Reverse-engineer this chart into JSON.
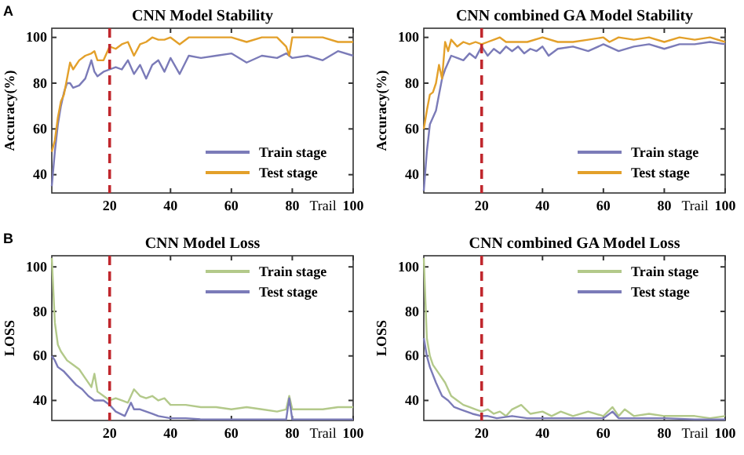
{
  "chart_data": [
    {
      "type": "line",
      "title": "CNN Model Stability",
      "xlabel": "Trail",
      "ylabel": "Accuracy(%)",
      "annotations": [
        "A"
      ],
      "xlim": [
        1,
        100
      ],
      "xticks": [
        20,
        40,
        60,
        80,
        100
      ],
      "ylim": [
        32,
        104
      ],
      "yticks": [
        40,
        60,
        80,
        100
      ],
      "legend": "bottom right",
      "ref_lines": [
        {
          "axis": "x",
          "value": 20,
          "color": "#c0272d",
          "line_style": "dashed"
        }
      ],
      "series": [
        {
          "name": "Train stage",
          "color": "#7b7bb8",
          "x": [
            1,
            2,
            3,
            4,
            5,
            6,
            7,
            8,
            10,
            12,
            14,
            15,
            16,
            18,
            20,
            22,
            24,
            26,
            28,
            30,
            32,
            34,
            36,
            38,
            40,
            43,
            46,
            50,
            55,
            60,
            65,
            70,
            75,
            78,
            80,
            85,
            90,
            95,
            100
          ],
          "values": [
            35,
            50,
            62,
            70,
            76,
            80,
            80,
            78,
            79,
            82,
            90,
            85,
            83,
            85,
            86,
            87,
            86,
            90,
            84,
            88,
            82,
            88,
            90,
            85,
            91,
            84,
            92,
            91,
            92,
            93,
            89,
            92,
            91,
            93,
            91,
            92,
            90,
            94,
            92
          ]
        },
        {
          "name": "Test stage",
          "color": "#e3a02a",
          "x": [
            1,
            2,
            3,
            4,
            5,
            6,
            7,
            8,
            10,
            12,
            14,
            15,
            16,
            18,
            20,
            22,
            24,
            26,
            28,
            30,
            32,
            34,
            36,
            38,
            40,
            43,
            46,
            50,
            55,
            60,
            65,
            70,
            75,
            78,
            79,
            80,
            85,
            90,
            95,
            100
          ],
          "values": [
            50,
            55,
            65,
            72,
            75,
            82,
            89,
            86,
            90,
            92,
            93,
            94,
            90,
            90,
            96,
            95,
            97,
            98,
            92,
            97,
            98,
            100,
            99,
            99,
            100,
            97,
            100,
            100,
            100,
            100,
            98,
            100,
            100,
            96,
            92,
            100,
            100,
            100,
            98,
            98
          ]
        }
      ]
    },
    {
      "type": "line",
      "title": "CNN combined GA Model Stability",
      "xlabel": "Trail",
      "ylabel": "Accuracy(%)",
      "xlim": [
        1,
        100
      ],
      "xticks": [
        20,
        40,
        60,
        80,
        100
      ],
      "ylim": [
        32,
        104
      ],
      "yticks": [
        40,
        60,
        80,
        100
      ],
      "legend": "bottom right",
      "ref_lines": [
        {
          "axis": "x",
          "value": 20,
          "color": "#c0272d",
          "line_style": "dashed"
        }
      ],
      "series": [
        {
          "name": "Train stage",
          "color": "#7b7bb8",
          "x": [
            1,
            2,
            3,
            4,
            5,
            6,
            7,
            8,
            10,
            12,
            14,
            16,
            18,
            20,
            22,
            24,
            26,
            28,
            30,
            32,
            34,
            36,
            38,
            40,
            42,
            45,
            50,
            55,
            60,
            65,
            70,
            75,
            80,
            85,
            90,
            95,
            100
          ],
          "values": [
            33,
            50,
            62,
            65,
            68,
            75,
            82,
            86,
            92,
            91,
            90,
            93,
            91,
            96,
            92,
            95,
            93,
            96,
            94,
            96,
            93,
            95,
            94,
            96,
            92,
            95,
            96,
            94,
            97,
            94,
            96,
            97,
            95,
            97,
            97,
            98,
            97
          ]
        },
        {
          "name": "Test stage",
          "color": "#e3a02a",
          "x": [
            1,
            2,
            3,
            4,
            5,
            6,
            7,
            8,
            9,
            10,
            12,
            14,
            16,
            18,
            20,
            22,
            24,
            26,
            28,
            30,
            35,
            40,
            45,
            50,
            55,
            60,
            62,
            65,
            70,
            75,
            80,
            85,
            90,
            95,
            100
          ],
          "values": [
            60,
            68,
            75,
            76,
            80,
            88,
            82,
            98,
            94,
            99,
            96,
            98,
            97,
            98,
            97,
            98,
            99,
            100,
            98,
            98,
            98,
            100,
            98,
            98,
            99,
            100,
            98,
            100,
            99,
            100,
            98,
            100,
            99,
            100,
            98
          ]
        }
      ]
    },
    {
      "type": "line",
      "title": "CNN Model Loss",
      "xlabel": "Trail",
      "ylabel": "LOSS",
      "annotations": [
        "B"
      ],
      "xlim": [
        1,
        100
      ],
      "xticks": [
        20,
        40,
        60,
        80,
        100
      ],
      "ylim": [
        31,
        105
      ],
      "yticks": [
        40,
        60,
        80,
        100
      ],
      "legend": "top right",
      "ref_lines": [
        {
          "axis": "x",
          "value": 20,
          "color": "#c0272d",
          "line_style": "dashed"
        }
      ],
      "series": [
        {
          "name": "Train stage",
          "color": "#b3c98a",
          "x": [
            1,
            2,
            3,
            4,
            6,
            8,
            10,
            12,
            14,
            15,
            16,
            18,
            20,
            22,
            24,
            26,
            28,
            30,
            32,
            34,
            36,
            38,
            40,
            45,
            50,
            55,
            60,
            65,
            70,
            75,
            78,
            79,
            80,
            85,
            90,
            95,
            100
          ],
          "values": [
            104,
            75,
            65,
            62,
            58,
            56,
            54,
            50,
            46,
            52,
            44,
            42,
            40,
            41,
            40,
            39,
            45,
            42,
            41,
            42,
            40,
            41,
            38,
            38,
            37,
            37,
            36,
            37,
            36,
            35,
            36,
            42,
            36,
            36,
            36,
            37,
            37
          ]
        },
        {
          "name": "Test stage",
          "color": "#7b7bb8",
          "x": [
            1,
            2,
            3,
            5,
            7,
            9,
            11,
            13,
            15,
            18,
            20,
            22,
            25,
            27,
            28,
            30,
            32,
            34,
            36,
            40,
            45,
            50,
            60,
            70,
            78,
            79,
            80,
            90,
            100
          ],
          "values": [
            60,
            58,
            55,
            53,
            50,
            47,
            45,
            42,
            40,
            40,
            38,
            35,
            33,
            39,
            36,
            36,
            35,
            34,
            33,
            32,
            32,
            31.5,
            31.5,
            31.5,
            31.5,
            41,
            31.5,
            31.5,
            31.5
          ]
        }
      ]
    },
    {
      "type": "line",
      "title": "CNN combined GA Model Loss",
      "xlabel": "Trail",
      "ylabel": "LOSS",
      "xlim": [
        1,
        100
      ],
      "xticks": [
        20,
        40,
        60,
        80,
        100
      ],
      "ylim": [
        31,
        105
      ],
      "yticks": [
        40,
        60,
        80,
        100
      ],
      "legend": "top right",
      "ref_lines": [
        {
          "axis": "x",
          "value": 20,
          "color": "#c0272d",
          "line_style": "dashed"
        }
      ],
      "series": [
        {
          "name": "Train stage",
          "color": "#b3c98a",
          "x": [
            1,
            2,
            3,
            4,
            6,
            8,
            10,
            12,
            14,
            16,
            18,
            20,
            22,
            24,
            26,
            28,
            30,
            33,
            36,
            40,
            43,
            46,
            50,
            55,
            60,
            63,
            65,
            67,
            70,
            75,
            80,
            85,
            90,
            95,
            100
          ],
          "values": [
            104,
            68,
            60,
            56,
            52,
            48,
            42,
            40,
            38,
            37,
            36,
            35,
            36,
            34,
            35,
            33,
            36,
            38,
            34,
            35,
            33,
            35,
            33,
            35,
            33,
            37,
            33,
            36,
            33,
            34,
            33,
            33,
            33,
            32,
            33
          ]
        },
        {
          "name": "Test stage",
          "color": "#7b7bb8",
          "x": [
            1,
            2,
            3,
            5,
            7,
            9,
            11,
            13,
            15,
            17,
            20,
            22,
            25,
            30,
            35,
            40,
            50,
            60,
            63,
            65,
            70,
            80,
            90,
            100
          ],
          "values": [
            68,
            60,
            55,
            48,
            42,
            40,
            37,
            36,
            35,
            34,
            33,
            33,
            32,
            33,
            32,
            32,
            32,
            32,
            35,
            32,
            32,
            32,
            31.5,
            31.5
          ]
        }
      ]
    }
  ]
}
